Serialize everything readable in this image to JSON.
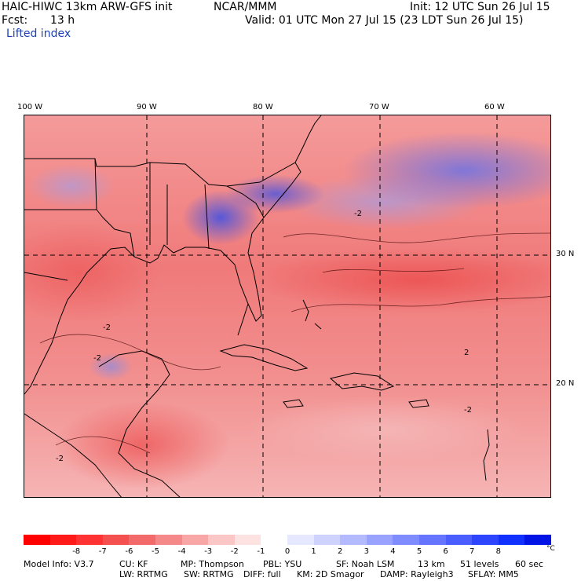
{
  "header": {
    "model_title": "HAIC-HIWC 13km ARW-GFS init",
    "org": "NCAR/MMM",
    "init": "Init: 12 UTC Sun 26 Jul 15",
    "fcst_label": "Fcst:",
    "fcst_value": "13 h",
    "valid": "Valid: 01 UTC Mon 27 Jul 15 (23 LDT Sun 26 Jul 15)",
    "field": "Lifted index"
  },
  "map": {
    "lon_labels": [
      "100 W",
      "90 W",
      "80 W",
      "70 W",
      "60 W"
    ],
    "lat_labels": [
      "30 N",
      "20 N"
    ],
    "contour_labels": [
      "-2",
      "-2",
      "-2",
      "-2",
      "-2",
      "2"
    ]
  },
  "colorbar": {
    "colors": [
      "#ff0000",
      "#ff1a1a",
      "#ff3333",
      "#f55050",
      "#f26a6a",
      "#f58888",
      "#f8a6a6",
      "#fbc6c6",
      "#fde2e2",
      "#ffffff",
      "#e6e8ff",
      "#cdd2ff",
      "#b3baff",
      "#99a3ff",
      "#7f8cff",
      "#6575ff",
      "#4a5eff",
      "#2e45ff",
      "#1030ff",
      "#0014e6"
    ],
    "ticks": [
      "-8",
      "-7",
      "-6",
      "-5",
      "-4",
      "-3",
      "-2",
      "-1",
      "0",
      "1",
      "2",
      "3",
      "4",
      "5",
      "6",
      "7",
      "8"
    ],
    "unit": "°C"
  },
  "footer": {
    "line1": [
      "Model Info: V3.7",
      "CU: KF",
      "MP: Thompson",
      "PBL: YSU",
      "SF: Noah LSM",
      "13 km",
      "51 levels",
      "60 sec"
    ],
    "line2": [
      "LW: RRTMG",
      "SW: RRTMG",
      "DIFF: full",
      "KM: 2D Smagor",
      "DAMP: Rayleigh3",
      "SFLAY: MM5"
    ]
  }
}
